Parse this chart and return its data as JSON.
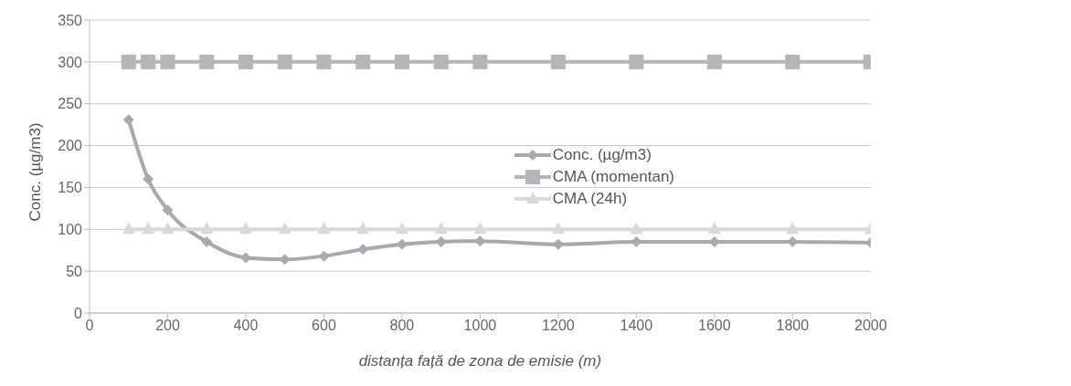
{
  "chart_data": {
    "type": "line",
    "xlabel": "distanța față de zona de emisie (m)",
    "ylabel": "Conc. (µg/m3)",
    "x": [
      100,
      150,
      200,
      300,
      400,
      500,
      600,
      700,
      800,
      900,
      1000,
      1200,
      1400,
      1600,
      1800,
      2000
    ],
    "series": [
      {
        "name": "Conc. (µg/m3)",
        "color": "#a8a8b0",
        "marker": "diamond",
        "values": [
          231,
          160,
          123,
          85,
          66,
          64,
          68,
          76,
          82,
          85,
          86,
          82,
          85,
          85,
          85,
          84
        ]
      },
      {
        "name": "CMA (momentan)",
        "color": "#b4b4b9",
        "marker": "square",
        "values": [
          300,
          300,
          300,
          300,
          300,
          300,
          300,
          300,
          300,
          300,
          300,
          300,
          300,
          300,
          300,
          300
        ]
      },
      {
        "name": "CMA (24h)",
        "color": "#d8d8dc",
        "marker": "triangle",
        "values": [
          100,
          100,
          100,
          100,
          100,
          100,
          100,
          100,
          100,
          100,
          100,
          100,
          100,
          100,
          100,
          100
        ]
      }
    ],
    "xlim": [
      0,
      2000
    ],
    "xticks": [
      0,
      200,
      400,
      600,
      800,
      1000,
      1200,
      1400,
      1600,
      1800,
      2000
    ],
    "ylim": [
      0,
      350
    ],
    "yticks": [
      0,
      50,
      100,
      150,
      200,
      250,
      300,
      350
    ],
    "grid": "y",
    "legend": "right"
  }
}
